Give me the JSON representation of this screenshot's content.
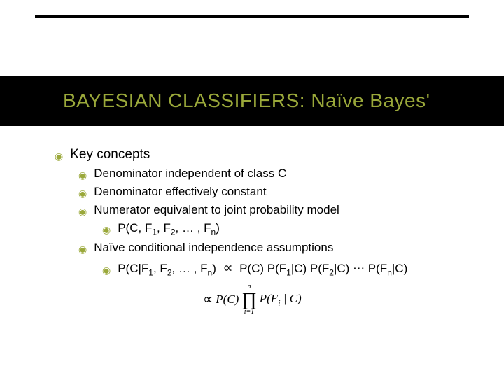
{
  "colors": {
    "bg": "#ffffff",
    "fg": "#000000",
    "accent": "#9aa83a"
  },
  "title": "BAYESIAN CLASSIFIERS: Naïve Bayes'",
  "title_color": "#9aa83a",
  "bullet_glyph": "◉",
  "bullet_color": "#9aa83a",
  "kc": {
    "heading": "Key concepts",
    "items": [
      "Denominator independent of class C",
      "Denominator effectively constant",
      "Numerator equivalent to joint probability model"
    ],
    "joint_formula": {
      "prefix": "P(C, F",
      "s1": "1",
      "mid1": ", F",
      "s2": "2",
      "mid2": ", … , F",
      "sn": "n",
      "suffix": ")"
    },
    "assumption_label": "Naïve conditional independence assumptions",
    "cond": {
      "lhs_a": "P(C|F",
      "lhs_s1": "1",
      "lhs_b": ", F",
      "lhs_s2": "2",
      "lhs_c": ", … , F",
      "lhs_sn": "n",
      "lhs_d": ")",
      "prop": "∝",
      "r1": "P(C) P(F",
      "r1s": "1",
      "r1b": "|C) P(F",
      "r2s": "2",
      "r1c": "|C)",
      "dots": "⋯",
      "rlast_a": "P(F",
      "rlast_s": "n",
      "rlast_b": "|C)"
    },
    "prod": {
      "prop": "∝",
      "pc": "P(C)",
      "top": "n",
      "symbol": "∏",
      "bottom": "i=1",
      "term_a": "P(F",
      "term_s": "i",
      "term_b": " | C)"
    }
  }
}
